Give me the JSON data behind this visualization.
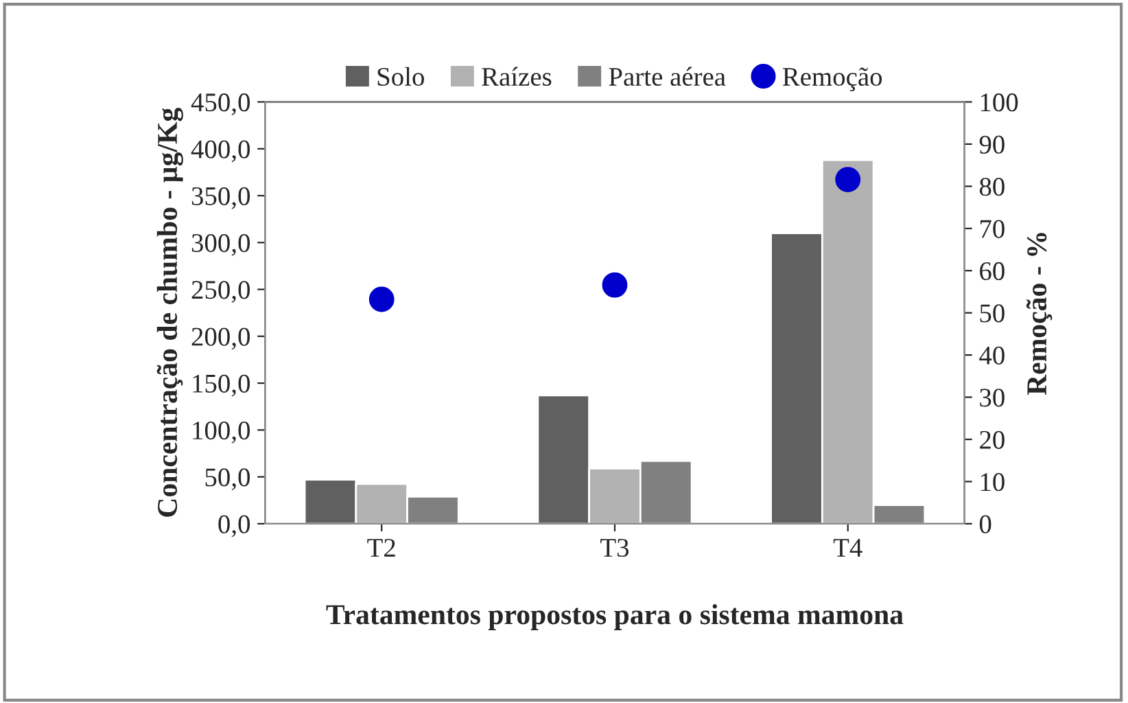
{
  "chart_data": {
    "type": "bar",
    "xlabel": "Tratamentos propostos para o sistema mamona",
    "ylabel": "Concentração de chumbo - µg/Kg",
    "y2label": "Remoção - %",
    "categories": [
      "T2",
      "T3",
      "T4"
    ],
    "series": [
      {
        "name": "Solo",
        "color": "#606060",
        "values": [
          47,
          137,
          310
        ]
      },
      {
        "name": "Raízes",
        "color": "#b2b2b2",
        "values": [
          42.5,
          59,
          388
        ]
      },
      {
        "name": "Parte aérea",
        "color": "#808080",
        "values": [
          29,
          67,
          20
        ]
      },
      {
        "name": "Remoção",
        "type": "scatter",
        "axis": "y2",
        "color": "#0000cc",
        "marker": "circle",
        "values": [
          53.2,
          56.6,
          81.6
        ]
      }
    ],
    "ylim": [
      0,
      450
    ],
    "yticks": [
      {
        "value": 0,
        "label": "0,0"
      },
      {
        "value": 50,
        "label": "50,0"
      },
      {
        "value": 100,
        "label": "100,0"
      },
      {
        "value": 150,
        "label": "150,0"
      },
      {
        "value": 200,
        "label": "200,0"
      },
      {
        "value": 250,
        "label": "250,0"
      },
      {
        "value": 300,
        "label": "300,0"
      },
      {
        "value": 350,
        "label": "350,0"
      },
      {
        "value": 400,
        "label": "400,0"
      },
      {
        "value": 450,
        "label": "450,0"
      }
    ],
    "y2lim": [
      0,
      100
    ],
    "y2ticks": [
      0,
      10,
      20,
      30,
      40,
      50,
      60,
      70,
      80,
      90,
      100
    ],
    "grid": false,
    "legend": "top"
  }
}
